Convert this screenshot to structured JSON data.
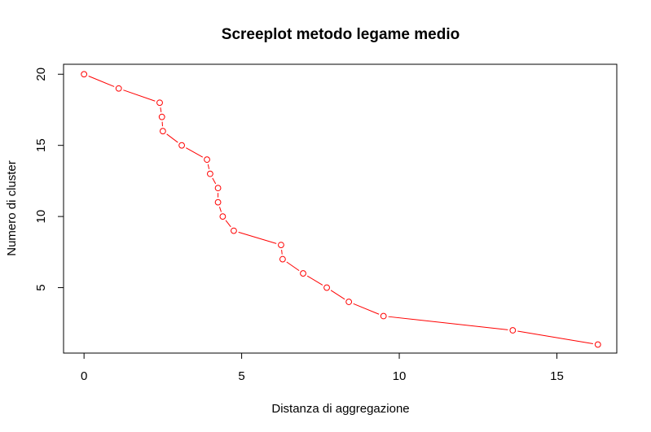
{
  "chart_data": {
    "type": "line",
    "title": "Screeplot metodo legame medio",
    "xlabel": "Distanza  di  aggregazione",
    "ylabel": "Numero  di  cluster",
    "xlim": [
      -0.65,
      16.9
    ],
    "ylim": [
      0.4,
      20.7
    ],
    "x_ticks": [
      0,
      5,
      10,
      15
    ],
    "y_ticks": [
      5,
      10,
      15,
      20
    ],
    "x_tick_labels": [
      "0",
      "5",
      "10",
      "15"
    ],
    "y_tick_labels": [
      "5",
      "10",
      "15",
      "20"
    ],
    "grid": false,
    "legend": "none",
    "marker": "open-circle",
    "color": "#ff0000",
    "series": [
      {
        "x": [
          0.0,
          1.1,
          2.4,
          2.47,
          2.5,
          3.1,
          3.9,
          4.0,
          4.25,
          4.25,
          4.4,
          4.75,
          6.25,
          6.3,
          6.95,
          7.7,
          8.4,
          9.5,
          13.6,
          16.3
        ],
        "y": [
          20,
          19,
          18,
          17,
          16,
          15,
          14,
          13,
          12,
          11,
          10,
          9,
          8,
          7,
          6,
          5,
          4,
          3,
          2,
          1
        ]
      }
    ]
  }
}
